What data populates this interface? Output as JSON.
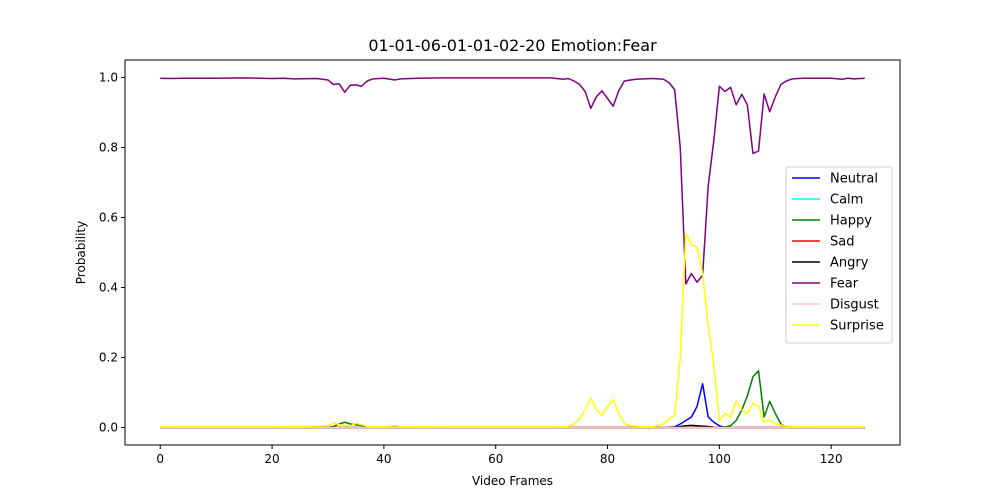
{
  "chart_data": {
    "type": "line",
    "title": "01-01-06-01-01-02-20 Emotion:Fear",
    "xlabel": "Video Frames",
    "ylabel": "Probability",
    "xlim": [
      -6.3,
      132.3
    ],
    "ylim": [
      -0.05,
      1.05
    ],
    "xticks": [
      0,
      20,
      40,
      60,
      80,
      100,
      120
    ],
    "yticks": [
      0.0,
      0.2,
      0.4,
      0.6,
      0.8,
      1.0
    ],
    "xtick_labels": [
      "0",
      "20",
      "40",
      "60",
      "80",
      "100",
      "120"
    ],
    "ytick_labels": [
      "0.0",
      "0.2",
      "0.4",
      "0.6",
      "0.8",
      "1.0"
    ],
    "grid": false,
    "legend_position": "center-right",
    "series": [
      {
        "name": "Neutral",
        "color": "#0000ff",
        "points": [
          [
            0,
            0
          ],
          [
            90,
            0
          ],
          [
            92,
            0.002
          ],
          [
            93,
            0.01
          ],
          [
            94,
            0.02
          ],
          [
            95,
            0.03
          ],
          [
            96,
            0.06
          ],
          [
            97,
            0.125
          ],
          [
            98,
            0.03
          ],
          [
            99,
            0.015
          ],
          [
            100,
            0.005
          ],
          [
            101,
            0
          ],
          [
            126,
            0
          ]
        ]
      },
      {
        "name": "Calm",
        "color": "#00ffff",
        "points": [
          [
            0,
            0
          ],
          [
            126,
            0
          ]
        ]
      },
      {
        "name": "Happy",
        "color": "#008000",
        "points": [
          [
            0,
            0
          ],
          [
            30,
            0
          ],
          [
            31,
            0.003
          ],
          [
            32,
            0.01
          ],
          [
            33,
            0.015
          ],
          [
            34,
            0.01
          ],
          [
            35,
            0.008
          ],
          [
            36,
            0.006
          ],
          [
            37,
            0.002
          ],
          [
            38,
            0
          ],
          [
            100,
            0
          ],
          [
            101,
            0.002
          ],
          [
            102,
            0.005
          ],
          [
            103,
            0.02
          ],
          [
            104,
            0.05
          ],
          [
            105,
            0.09
          ],
          [
            106,
            0.145
          ],
          [
            107,
            0.162
          ],
          [
            108,
            0.03
          ],
          [
            109,
            0.075
          ],
          [
            110,
            0.04
          ],
          [
            111,
            0.01
          ],
          [
            112,
            0.002
          ],
          [
            113,
            0
          ],
          [
            126,
            0
          ]
        ]
      },
      {
        "name": "Sad",
        "color": "#ff0000",
        "points": [
          [
            0,
            0
          ],
          [
            126,
            0
          ]
        ]
      },
      {
        "name": "Angry",
        "color": "#000000",
        "points": [
          [
            0,
            0
          ],
          [
            92,
            0
          ],
          [
            93,
            0.003
          ],
          [
            94,
            0.005
          ],
          [
            95,
            0.006
          ],
          [
            96,
            0.005
          ],
          [
            97,
            0.004
          ],
          [
            98,
            0.003
          ],
          [
            99,
            0.001
          ],
          [
            100,
            0
          ],
          [
            126,
            0
          ]
        ]
      },
      {
        "name": "Fear",
        "color": "#800080",
        "points": [
          [
            0,
            0.998
          ],
          [
            2,
            0.997
          ],
          [
            4,
            0.998
          ],
          [
            10,
            0.998
          ],
          [
            15,
            0.999
          ],
          [
            20,
            0.997
          ],
          [
            22,
            0.998
          ],
          [
            24,
            0.996
          ],
          [
            28,
            0.997
          ],
          [
            30,
            0.993
          ],
          [
            31,
            0.98
          ],
          [
            32,
            0.982
          ],
          [
            33,
            0.958
          ],
          [
            34,
            0.978
          ],
          [
            35,
            0.979
          ],
          [
            36,
            0.975
          ],
          [
            37,
            0.99
          ],
          [
            38,
            0.996
          ],
          [
            40,
            0.998
          ],
          [
            42,
            0.993
          ],
          [
            43,
            0.996
          ],
          [
            46,
            0.998
          ],
          [
            50,
            0.999
          ],
          [
            60,
            0.999
          ],
          [
            70,
            0.999
          ],
          [
            72,
            0.995
          ],
          [
            73,
            0.997
          ],
          [
            74,
            0.99
          ],
          [
            75,
            0.98
          ],
          [
            76,
            0.96
          ],
          [
            77,
            0.912
          ],
          [
            78,
            0.945
          ],
          [
            79,
            0.962
          ],
          [
            80,
            0.94
          ],
          [
            81,
            0.918
          ],
          [
            82,
            0.962
          ],
          [
            83,
            0.99
          ],
          [
            85,
            0.995
          ],
          [
            88,
            0.997
          ],
          [
            90,
            0.995
          ],
          [
            91,
            0.985
          ],
          [
            92,
            0.965
          ],
          [
            93,
            0.8
          ],
          [
            94,
            0.41
          ],
          [
            95,
            0.44
          ],
          [
            96,
            0.415
          ],
          [
            97,
            0.435
          ],
          [
            98,
            0.69
          ],
          [
            99,
            0.82
          ],
          [
            100,
            0.975
          ],
          [
            101,
            0.96
          ],
          [
            102,
            0.972
          ],
          [
            103,
            0.922
          ],
          [
            104,
            0.952
          ],
          [
            105,
            0.922
          ],
          [
            106,
            0.783
          ],
          [
            107,
            0.79
          ],
          [
            108,
            0.953
          ],
          [
            109,
            0.902
          ],
          [
            110,
            0.945
          ],
          [
            111,
            0.98
          ],
          [
            112,
            0.99
          ],
          [
            113,
            0.996
          ],
          [
            115,
            0.998
          ],
          [
            120,
            0.998
          ],
          [
            122,
            0.995
          ],
          [
            123,
            0.998
          ],
          [
            124,
            0.996
          ],
          [
            126,
            0.998
          ]
        ]
      },
      {
        "name": "Disgust",
        "color": "#ffc0cb",
        "points": [
          [
            0,
            0
          ],
          [
            126,
            0
          ]
        ]
      },
      {
        "name": "Surprise",
        "color": "#ffff00",
        "points": [
          [
            0,
            0.002
          ],
          [
            20,
            0.002
          ],
          [
            28,
            0.004
          ],
          [
            30,
            0.005
          ],
          [
            31,
            0.013
          ],
          [
            32,
            0.008
          ],
          [
            33,
            0.006
          ],
          [
            34,
            0.004
          ],
          [
            35,
            0.012
          ],
          [
            36,
            0.008
          ],
          [
            37,
            0.003
          ],
          [
            40,
            0.002
          ],
          [
            42,
            0.005
          ],
          [
            43,
            0.003
          ],
          [
            50,
            0.002
          ],
          [
            70,
            0.002
          ],
          [
            73,
            0.003
          ],
          [
            74,
            0.01
          ],
          [
            75,
            0.025
          ],
          [
            76,
            0.05
          ],
          [
            77,
            0.085
          ],
          [
            78,
            0.05
          ],
          [
            79,
            0.035
          ],
          [
            80,
            0.06
          ],
          [
            81,
            0.08
          ],
          [
            82,
            0.04
          ],
          [
            83,
            0.012
          ],
          [
            84,
            0.005
          ],
          [
            86,
            0.003
          ],
          [
            88,
            0.002
          ],
          [
            90,
            0.01
          ],
          [
            91,
            0.025
          ],
          [
            92,
            0.035
          ],
          [
            93,
            0.2
          ],
          [
            94,
            0.555
          ],
          [
            95,
            0.522
          ],
          [
            96,
            0.515
          ],
          [
            97,
            0.44
          ],
          [
            98,
            0.29
          ],
          [
            99,
            0.18
          ],
          [
            100,
            0.02
          ],
          [
            101,
            0.04
          ],
          [
            102,
            0.03
          ],
          [
            103,
            0.075
          ],
          [
            104,
            0.05
          ],
          [
            105,
            0.04
          ],
          [
            106,
            0.07
          ],
          [
            107,
            0.06
          ],
          [
            108,
            0.015
          ],
          [
            109,
            0.022
          ],
          [
            110,
            0.01
          ],
          [
            112,
            0.004
          ],
          [
            115,
            0.002
          ],
          [
            126,
            0.002
          ]
        ]
      }
    ]
  }
}
